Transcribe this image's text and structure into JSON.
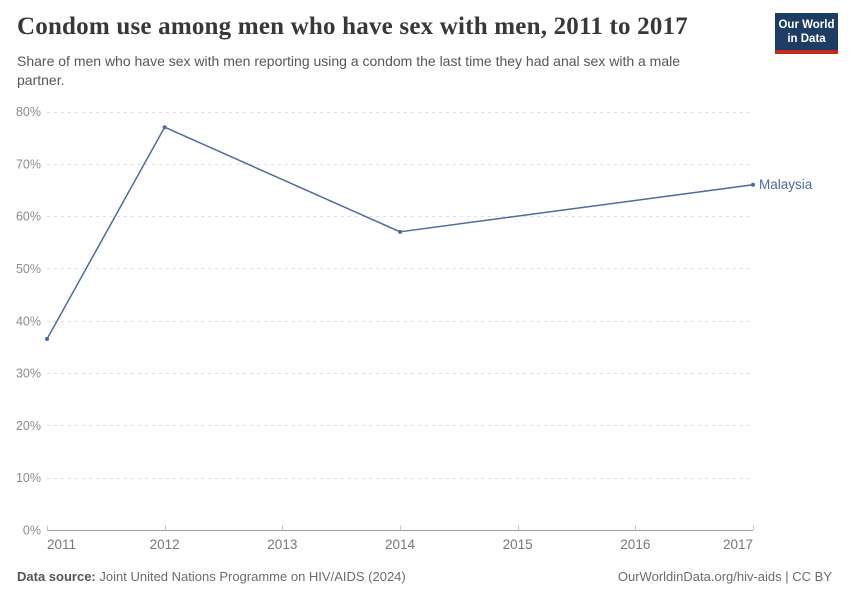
{
  "header": {
    "title": "Condom use among men who have sex with men, 2011 to 2017",
    "subtitle": "Share of men who have sex with men reporting using a condom the last time they had anal sex with a male partner.",
    "logo": {
      "line1": "Our World",
      "line2": "in Data"
    }
  },
  "chart_data": {
    "type": "line",
    "title": "Condom use among men who have sex with men, 2011 to 2017",
    "xlabel": "",
    "ylabel": "",
    "xlim": [
      2011,
      2017
    ],
    "ylim": [
      0,
      80
    ],
    "x_ticks": [
      2011,
      2012,
      2013,
      2014,
      2015,
      2016,
      2017
    ],
    "y_ticks": [
      0,
      10,
      20,
      30,
      40,
      50,
      60,
      70,
      80
    ],
    "y_tick_suffix": "%",
    "grid": "horizontal-dashed",
    "legend_position": "end-of-line-label",
    "series": [
      {
        "name": "Malaysia",
        "color": "#4C6A9C",
        "x": [
          2011,
          2012,
          2014,
          2017
        ],
        "values": [
          36.5,
          77,
          57,
          66
        ]
      }
    ]
  },
  "footer": {
    "source_label": "Data source:",
    "source_text": "Joint United Nations Programme on HIV/AIDS (2024)",
    "credit": "OurWorldinData.org/hiv-aids | CC BY"
  },
  "colors": {
    "accent_blue": "#4C6A9C",
    "logo_navy": "#1D3D63",
    "logo_red": "#C32C1C",
    "gridline": "#dedede",
    "axis": "#a5a5a5",
    "tick": "#c4c4c4"
  }
}
